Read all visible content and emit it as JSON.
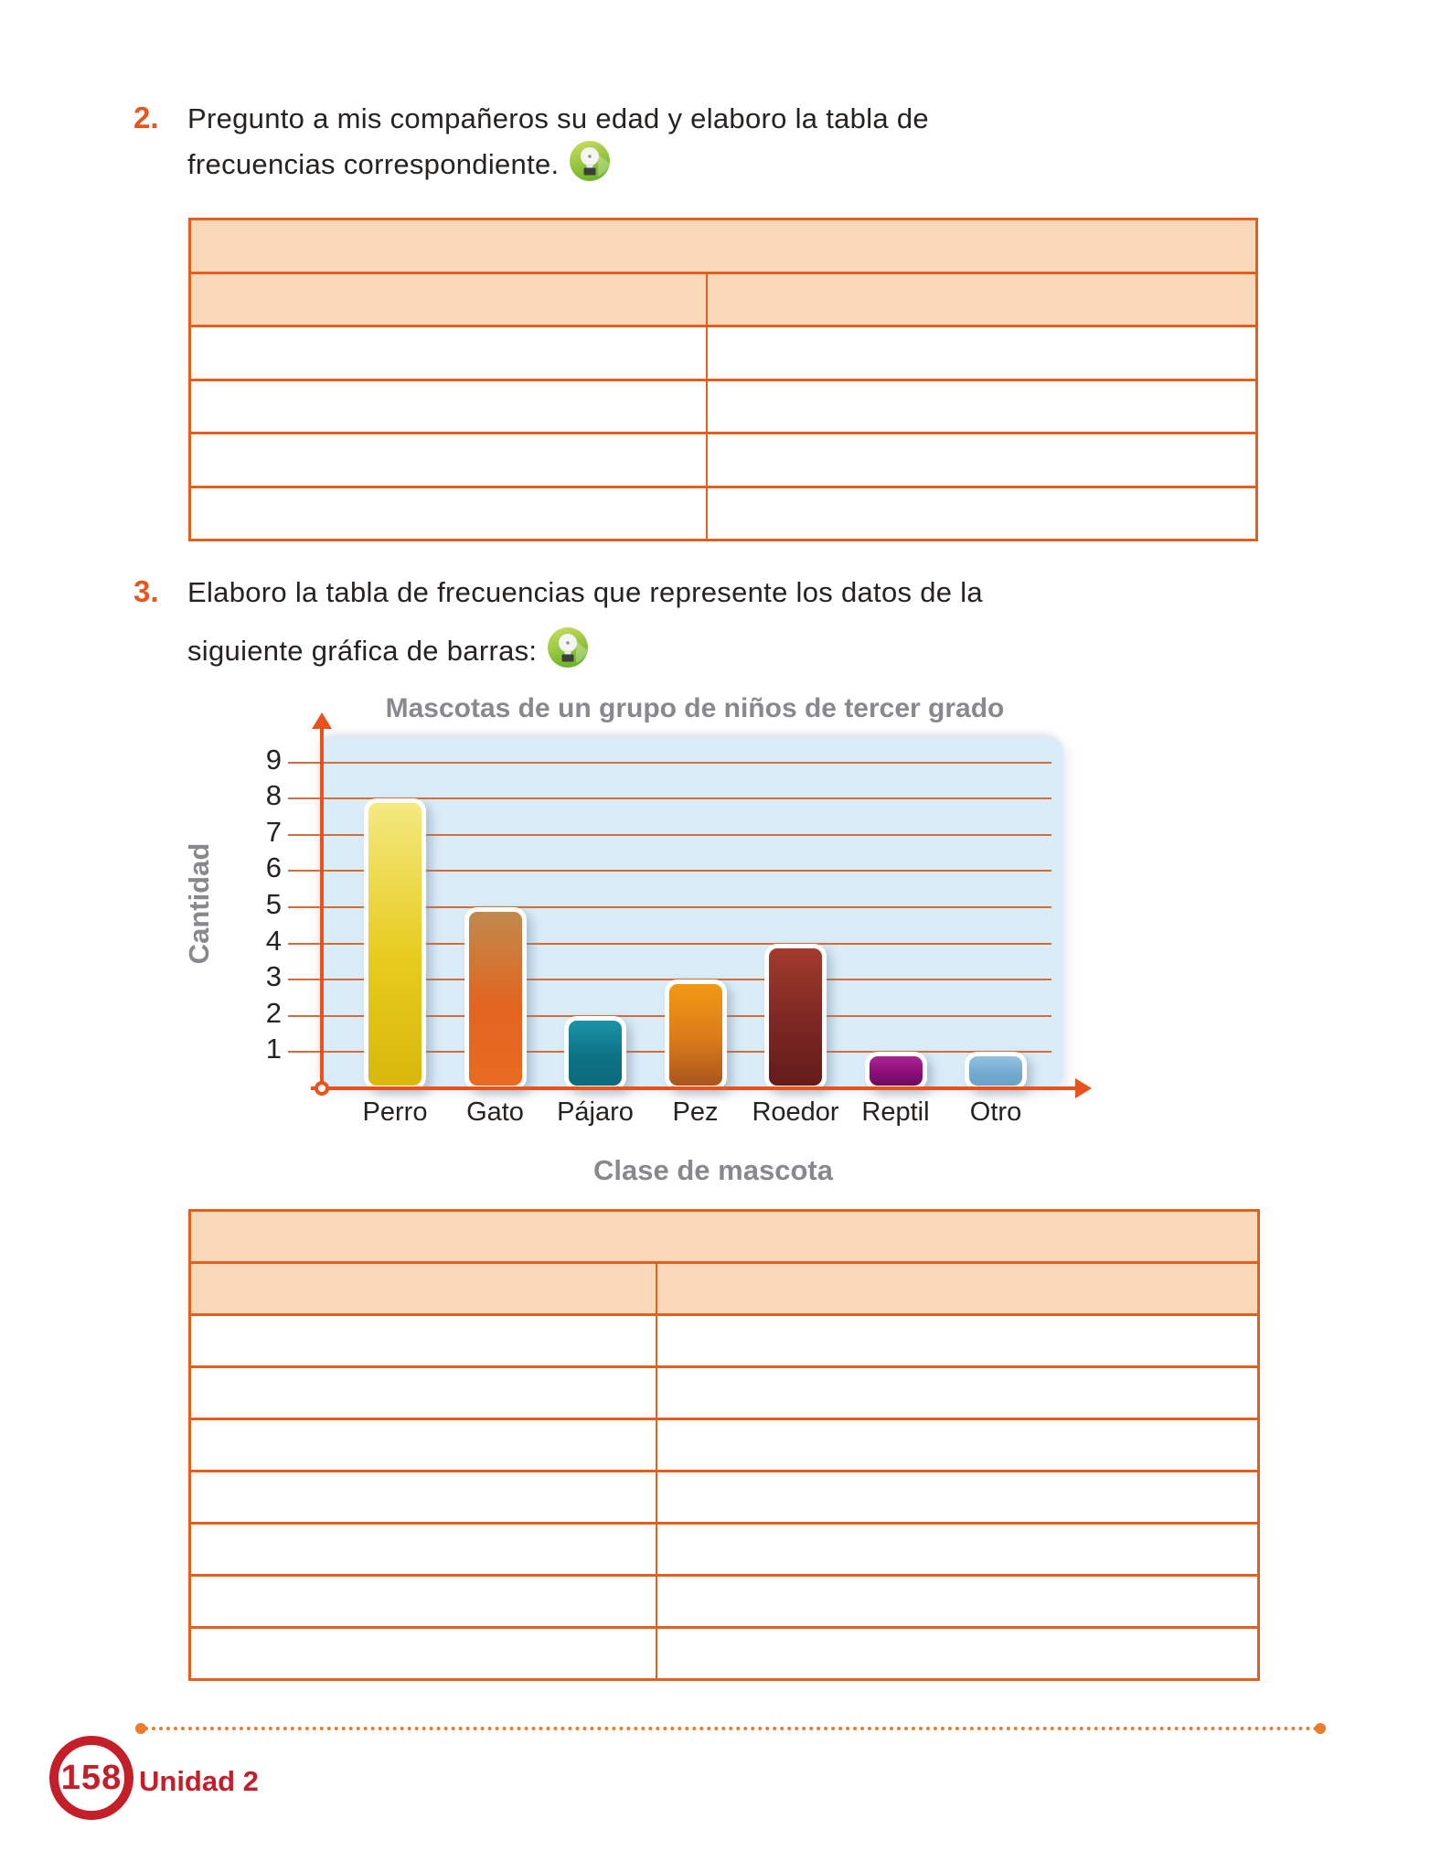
{
  "items": [
    {
      "number": "2.",
      "line1": "Pregunto a mis compañeros su edad y elaboro la tabla de",
      "line2": "frecuencias correspondiente."
    },
    {
      "number": "3.",
      "line1": "Elaboro la tabla de frecuencias que represente los datos de la",
      "line2": "siguiente gráfica de barras:"
    }
  ],
  "icons": {
    "idea_icon": "lightbulb-idea-badge"
  },
  "tables": {
    "age_frequency_table": {
      "columns": 2,
      "title_header_rows": 1,
      "column_header_rows": 1,
      "blank_rows": 4,
      "col_split_percent": 48.5,
      "header_fill": "#f9d7b9",
      "border_color": "#e25f1e"
    },
    "pets_frequency_table": {
      "columns": 2,
      "title_header_rows": 1,
      "column_header_rows": 1,
      "blank_rows": 7,
      "col_split_percent": 43.7,
      "header_fill": "#f9d7b9",
      "border_color": "#e25f1e"
    }
  },
  "chart_data": {
    "type": "bar",
    "title": "Mascotas de un grupo de niños de tercer grado",
    "xlabel": "Clase de mascota",
    "ylabel": "Cantidad",
    "categories": [
      "Perro",
      "Gato",
      "Pájaro",
      "Pez",
      "Roedor",
      "Reptil",
      "Otro"
    ],
    "values": [
      8,
      5,
      2,
      3,
      4,
      1,
      1
    ],
    "yticks": [
      9,
      8,
      7,
      6,
      5,
      4,
      3,
      2,
      1
    ],
    "ylim": [
      0,
      9
    ],
    "grid": true,
    "legend": false,
    "plot_bg": "#d9ecf8",
    "grid_color": "#d46d3c",
    "axis_color": "#e8521c",
    "title_color": "#87898c",
    "bar_gradients": [
      [
        "#f4e981",
        "#e7cb1d",
        "#d9b70c"
      ],
      [
        "#c08a4d",
        "#e3641f",
        "#e96a21"
      ],
      [
        "#1b93a8",
        "#0e7285",
        "#0d6b7e"
      ],
      [
        "#f29a13",
        "#d97a1a",
        "#a9561e"
      ],
      [
        "#a23b2d",
        "#7c2723",
        "#641c1a"
      ],
      [
        "#a82693",
        "#8c0f79",
        "#6b0c5e"
      ],
      [
        "#93c3de",
        "#74abd0",
        "#6aa2c9"
      ]
    ]
  },
  "footer": {
    "page_number": "158",
    "unit_label": "Unidad 2",
    "accent_color": "#c41e28",
    "dotted_color": "#ee7b2c"
  }
}
